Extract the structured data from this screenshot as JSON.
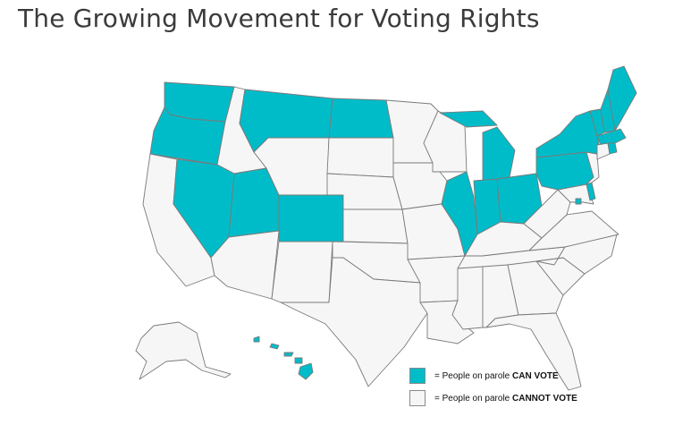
{
  "title": "The Growing Movement for Voting Rights",
  "colors": {
    "can_vote": "#00bcc9",
    "cannot_vote": "#f6f6f6",
    "border": "#7a7a7a"
  },
  "legend": [
    {
      "prefix": "= People on parole ",
      "status": "CAN VOTE",
      "color": "#00bcc9"
    },
    {
      "prefix": "= People on parole ",
      "status": "CANNOT VOTE",
      "color": "#f6f6f6"
    }
  ],
  "states_can_vote": [
    "WA",
    "OR",
    "NV",
    "UT",
    "CO",
    "MT",
    "ND",
    "MI",
    "IL",
    "IN",
    "OH",
    "PA",
    "NY",
    "VT",
    "NH",
    "ME",
    "MA",
    "RI",
    "DE",
    "DC",
    "HI"
  ],
  "states_cannot_vote": [
    "ID",
    "WY",
    "SD",
    "NE",
    "KS",
    "OK",
    "TX",
    "NM",
    "AZ",
    "CA",
    "MN",
    "IA",
    "MO",
    "AR",
    "LA",
    "WI",
    "KY",
    "TN",
    "MS",
    "AL",
    "GA",
    "FL",
    "SC",
    "NC",
    "VA",
    "WV",
    "MD",
    "NJ",
    "CT",
    "AK"
  ]
}
